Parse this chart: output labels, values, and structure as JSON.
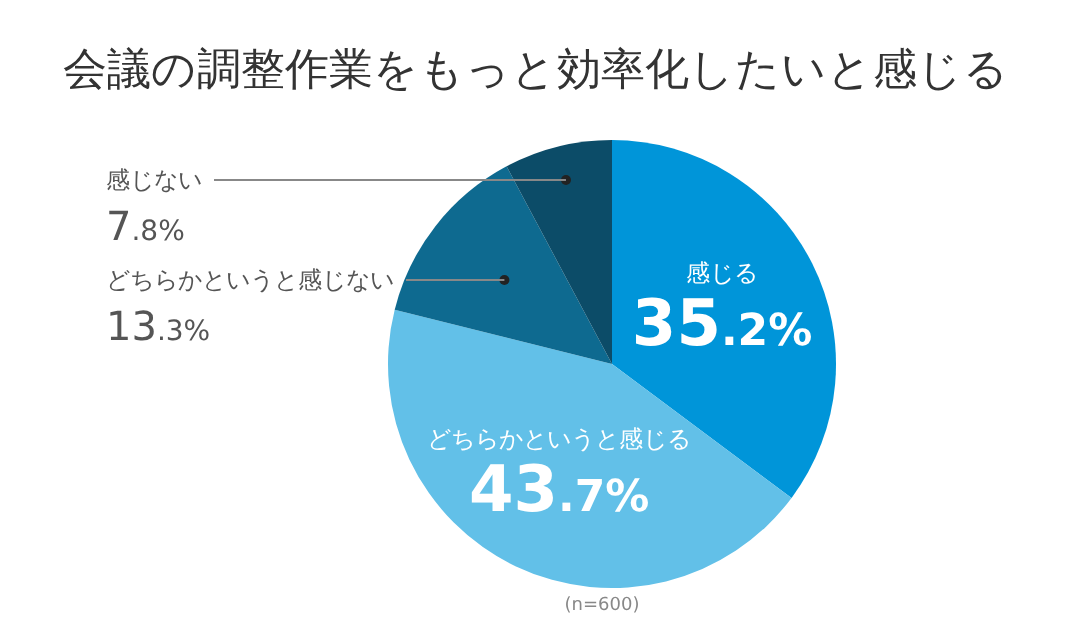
{
  "chart_data": {
    "type": "pie",
    "title": "会議の調整作業をもっと効率化したいと感じる",
    "categories": [
      "感じる",
      "どちらかというと感じる",
      "どちらかというと感じない",
      "感じない"
    ],
    "values": [
      35.2,
      43.7,
      13.3,
      7.8
    ],
    "value_labels": [
      "35.2%",
      "43.7%",
      "13.3%",
      "7.8%"
    ],
    "colors": [
      "#0095d9",
      "#62c0e8",
      "#0e6a90",
      "#0c4c68"
    ],
    "annotations": [
      "(n=600)"
    ]
  }
}
